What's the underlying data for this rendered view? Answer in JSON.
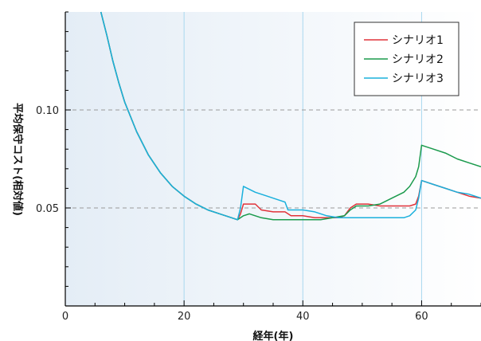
{
  "chart_data": {
    "type": "line",
    "title": "",
    "xlabel": "経年(年)",
    "ylabel": "平均保守コスト(相対値)",
    "xlim": [
      0,
      70
    ],
    "ylim": [
      0,
      0.15
    ],
    "x_ticks": [
      0,
      20,
      40,
      60
    ],
    "x_tick_labels": [
      "0",
      "20",
      "40",
      "60"
    ],
    "y_ticks": [
      0.05,
      0.1
    ],
    "y_tick_labels": [
      "0.05",
      "0.10"
    ],
    "grid": "dashed horizontal at y ticks; vertical lines at x ticks",
    "legend_position": "top-right",
    "series": [
      {
        "name": "シナリオ1",
        "color": "#e0333a",
        "points": [
          [
            6,
            0.15
          ],
          [
            7,
            0.138
          ],
          [
            8,
            0.125
          ],
          [
            9,
            0.114
          ],
          [
            10,
            0.104
          ],
          [
            12,
            0.089
          ],
          [
            14,
            0.077
          ],
          [
            16,
            0.068
          ],
          [
            18,
            0.061
          ],
          [
            20,
            0.056
          ],
          [
            22,
            0.052
          ],
          [
            24,
            0.049
          ],
          [
            26,
            0.047
          ],
          [
            28,
            0.045
          ],
          [
            29,
            0.044
          ],
          [
            29.5,
            0.047
          ],
          [
            30,
            0.052
          ],
          [
            32,
            0.052
          ],
          [
            33,
            0.049
          ],
          [
            35,
            0.048
          ],
          [
            37,
            0.048
          ],
          [
            38,
            0.046
          ],
          [
            40,
            0.046
          ],
          [
            42,
            0.045
          ],
          [
            44,
            0.045
          ],
          [
            46,
            0.045
          ],
          [
            47,
            0.046
          ],
          [
            48,
            0.05
          ],
          [
            49,
            0.052
          ],
          [
            51,
            0.052
          ],
          [
            53,
            0.051
          ],
          [
            55,
            0.051
          ],
          [
            57,
            0.051
          ],
          [
            58,
            0.051
          ],
          [
            59,
            0.052
          ],
          [
            59.5,
            0.056
          ],
          [
            60,
            0.064
          ],
          [
            62,
            0.062
          ],
          [
            64,
            0.06
          ],
          [
            66,
            0.058
          ],
          [
            68,
            0.056
          ],
          [
            70,
            0.055
          ]
        ]
      },
      {
        "name": "シナリオ2",
        "color": "#1a9a4c",
        "points": [
          [
            6,
            0.15
          ],
          [
            7,
            0.138
          ],
          [
            8,
            0.125
          ],
          [
            9,
            0.114
          ],
          [
            10,
            0.104
          ],
          [
            12,
            0.089
          ],
          [
            14,
            0.077
          ],
          [
            16,
            0.068
          ],
          [
            18,
            0.061
          ],
          [
            20,
            0.056
          ],
          [
            22,
            0.052
          ],
          [
            24,
            0.049
          ],
          [
            26,
            0.047
          ],
          [
            28,
            0.045
          ],
          [
            29,
            0.044
          ],
          [
            30,
            0.046
          ],
          [
            31,
            0.047
          ],
          [
            33,
            0.045
          ],
          [
            35,
            0.044
          ],
          [
            37,
            0.044
          ],
          [
            40,
            0.044
          ],
          [
            43,
            0.044
          ],
          [
            45,
            0.045
          ],
          [
            47,
            0.046
          ],
          [
            48,
            0.049
          ],
          [
            49,
            0.051
          ],
          [
            51,
            0.051
          ],
          [
            53,
            0.052
          ],
          [
            55,
            0.055
          ],
          [
            57,
            0.058
          ],
          [
            58,
            0.061
          ],
          [
            59,
            0.066
          ],
          [
            59.5,
            0.071
          ],
          [
            60,
            0.082
          ],
          [
            62,
            0.08
          ],
          [
            64,
            0.078
          ],
          [
            66,
            0.075
          ],
          [
            68,
            0.073
          ],
          [
            70,
            0.071
          ]
        ]
      },
      {
        "name": "シナリオ3",
        "color": "#1ab0dc",
        "points": [
          [
            6,
            0.15
          ],
          [
            7,
            0.138
          ],
          [
            8,
            0.125
          ],
          [
            9,
            0.114
          ],
          [
            10,
            0.104
          ],
          [
            12,
            0.089
          ],
          [
            14,
            0.077
          ],
          [
            16,
            0.068
          ],
          [
            18,
            0.061
          ],
          [
            20,
            0.056
          ],
          [
            22,
            0.052
          ],
          [
            24,
            0.049
          ],
          [
            26,
            0.047
          ],
          [
            28,
            0.045
          ],
          [
            29,
            0.044
          ],
          [
            29.5,
            0.05
          ],
          [
            30,
            0.061
          ],
          [
            32,
            0.058
          ],
          [
            34,
            0.056
          ],
          [
            36,
            0.054
          ],
          [
            37,
            0.053
          ],
          [
            37.5,
            0.049
          ],
          [
            40,
            0.049
          ],
          [
            42,
            0.048
          ],
          [
            44,
            0.046
          ],
          [
            46,
            0.045
          ],
          [
            50,
            0.045
          ],
          [
            54,
            0.045
          ],
          [
            57,
            0.045
          ],
          [
            58,
            0.046
          ],
          [
            59,
            0.049
          ],
          [
            59.5,
            0.055
          ],
          [
            60,
            0.064
          ],
          [
            62,
            0.062
          ],
          [
            64,
            0.06
          ],
          [
            66,
            0.058
          ],
          [
            68,
            0.057
          ],
          [
            70,
            0.055
          ]
        ]
      }
    ]
  }
}
